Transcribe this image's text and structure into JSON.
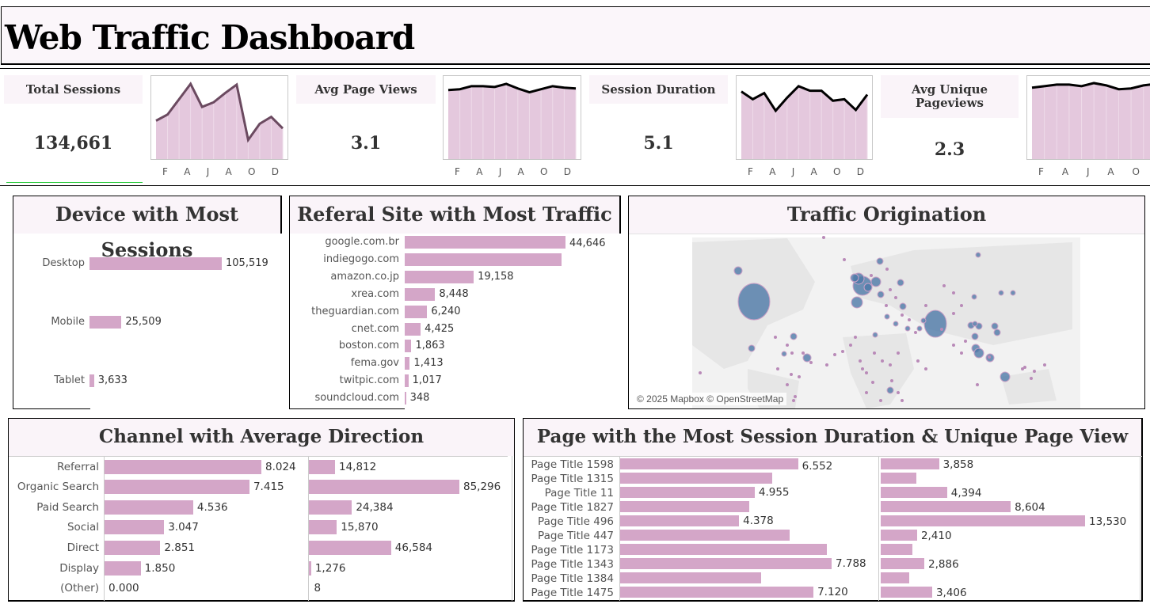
{
  "title": "Web Traffic Dashboard",
  "kpis": [
    {
      "label": "Total Sessions",
      "value": "134,661",
      "trend": [
        0.5,
        0.58,
        0.78,
        0.98,
        0.68,
        0.74,
        0.86,
        0.97,
        0.25,
        0.46,
        0.55,
        0.4
      ]
    },
    {
      "label": "Avg Page Views",
      "value": "3.1",
      "trend": [
        0.9,
        0.91,
        0.95,
        0.95,
        0.94,
        0.98,
        0.92,
        0.87,
        0.91,
        0.95,
        0.93,
        0.92
      ]
    },
    {
      "label": "Session Duration",
      "value": "5.1",
      "trend": [
        0.88,
        0.78,
        0.86,
        0.63,
        0.8,
        0.95,
        0.89,
        0.89,
        0.76,
        0.78,
        0.64,
        0.84
      ]
    },
    {
      "label": "Avg Unique Pageviews",
      "value": "2.3",
      "trend": [
        0.93,
        0.95,
        0.97,
        0.97,
        0.95,
        0.99,
        0.96,
        0.91,
        0.92,
        0.96,
        0.98,
        0.98
      ]
    }
  ],
  "months_axis": [
    "F",
    "A",
    "J",
    "A",
    "O",
    "D"
  ],
  "device_panel": {
    "title": "Device with Most Sessions",
    "items": [
      {
        "label": "Desktop",
        "value": 105519,
        "display": "105,519"
      },
      {
        "label": "Mobile",
        "value": 25509,
        "display": "25,509"
      },
      {
        "label": "Tablet",
        "value": 3633,
        "display": "3,633"
      }
    ]
  },
  "referral_panel": {
    "title": "Referal Site with Most Traffic",
    "items": [
      {
        "label": "google.com.br",
        "value": 44646,
        "display": "44,646"
      },
      {
        "label": "indiegogo.com",
        "value": 43600,
        "display": ""
      },
      {
        "label": "amazon.co.jp",
        "value": 19158,
        "display": "19,158"
      },
      {
        "label": "xrea.com",
        "value": 8448,
        "display": "8,448"
      },
      {
        "label": "theguardian.com",
        "value": 6240,
        "display": "6,240"
      },
      {
        "label": "cnet.com",
        "value": 4425,
        "display": "4,425"
      },
      {
        "label": "boston.com",
        "value": 1863,
        "display": "1,863"
      },
      {
        "label": "fema.gov",
        "value": 1413,
        "display": "1,413"
      },
      {
        "label": "twitpic.com",
        "value": 1017,
        "display": "1,017"
      },
      {
        "label": "soundcloud.com",
        "value": 348,
        "display": "348"
      }
    ]
  },
  "map_panel": {
    "title": "Traffic Origination",
    "attribution": "© 2025 Mapbox © OpenStreetMap"
  },
  "channel_panel": {
    "title": "Channel with Average Direction",
    "items": [
      {
        "label": "Referral",
        "duration": 8.024,
        "duration_display": "8.024",
        "sessions": 14812,
        "sessions_display": "14,812"
      },
      {
        "label": "Organic Search",
        "duration": 7.415,
        "duration_display": "7.415",
        "sessions": 85296,
        "sessions_display": "85,296"
      },
      {
        "label": "Paid Search",
        "duration": 4.536,
        "duration_display": "4.536",
        "sessions": 24384,
        "sessions_display": "24,384"
      },
      {
        "label": "Social",
        "duration": 3.047,
        "duration_display": "3.047",
        "sessions": 15870,
        "sessions_display": "15,870"
      },
      {
        "label": "Direct",
        "duration": 2.851,
        "duration_display": "2.851",
        "sessions": 46584,
        "sessions_display": "46,584"
      },
      {
        "label": "Display",
        "duration": 1.85,
        "duration_display": "1.850",
        "sessions": 1276,
        "sessions_display": "1,276"
      },
      {
        "label": "(Other)",
        "duration": 0.0,
        "duration_display": "0.000",
        "sessions": 8,
        "sessions_display": "8"
      }
    ]
  },
  "page_panel": {
    "title": "Page with the Most Session Duration & Unique Page View",
    "items": [
      {
        "label": "Page Title 1598",
        "duration": 6.552,
        "duration_display": "6.552",
        "unique": 3858,
        "unique_display": "3,858"
      },
      {
        "label": "Page Title 1315",
        "duration": 5.6,
        "duration_display": "",
        "unique": 2350,
        "unique_display": ""
      },
      {
        "label": "Page Title 11",
        "duration": 4.955,
        "duration_display": "4.955",
        "unique": 4394,
        "unique_display": "4,394"
      },
      {
        "label": "Page Title 1827",
        "duration": 4.75,
        "duration_display": "",
        "unique": 8604,
        "unique_display": "8,604"
      },
      {
        "label": "Page Title 496",
        "duration": 4.378,
        "duration_display": "4.378",
        "unique": 13530,
        "unique_display": "13,530"
      },
      {
        "label": "Page Title 447",
        "duration": 6.25,
        "duration_display": "",
        "unique": 2410,
        "unique_display": "2,410"
      },
      {
        "label": "Page Title 1173",
        "duration": 7.6,
        "duration_display": "",
        "unique": 2100,
        "unique_display": ""
      },
      {
        "label": "Page Title 1343",
        "duration": 7.788,
        "duration_display": "7.788",
        "unique": 2886,
        "unique_display": "2,886"
      },
      {
        "label": "Page Title 1384",
        "duration": 5.2,
        "duration_display": "",
        "unique": 1900,
        "unique_display": ""
      },
      {
        "label": "Page Title 1475",
        "duration": 7.12,
        "duration_display": "7.120",
        "unique": 3406,
        "unique_display": "3,406"
      }
    ]
  },
  "colors": {
    "bar": "#d4a6c8",
    "header_bg": "#faf4f9",
    "bubble": "#4e79a7",
    "accent_underline": "#2ecc40"
  }
}
